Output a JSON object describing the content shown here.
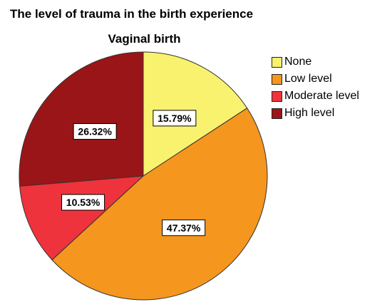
{
  "chart_data": {
    "type": "pie",
    "title": "The level of trauma in the birth experience",
    "subtitle": "Vaginal birth",
    "categories": [
      "None",
      "Low level",
      "Moderate level",
      "High level"
    ],
    "values": [
      15.79,
      47.37,
      10.53,
      26.32
    ],
    "labels": [
      "15.79%",
      "47.37%",
      "10.53%",
      "26.32%"
    ],
    "colors": [
      "#F9F26F",
      "#F5961E",
      "#EE333C",
      "#9A1518"
    ],
    "start_angle": "12 o'clock",
    "direction": "clockwise",
    "legend_position": "right"
  }
}
